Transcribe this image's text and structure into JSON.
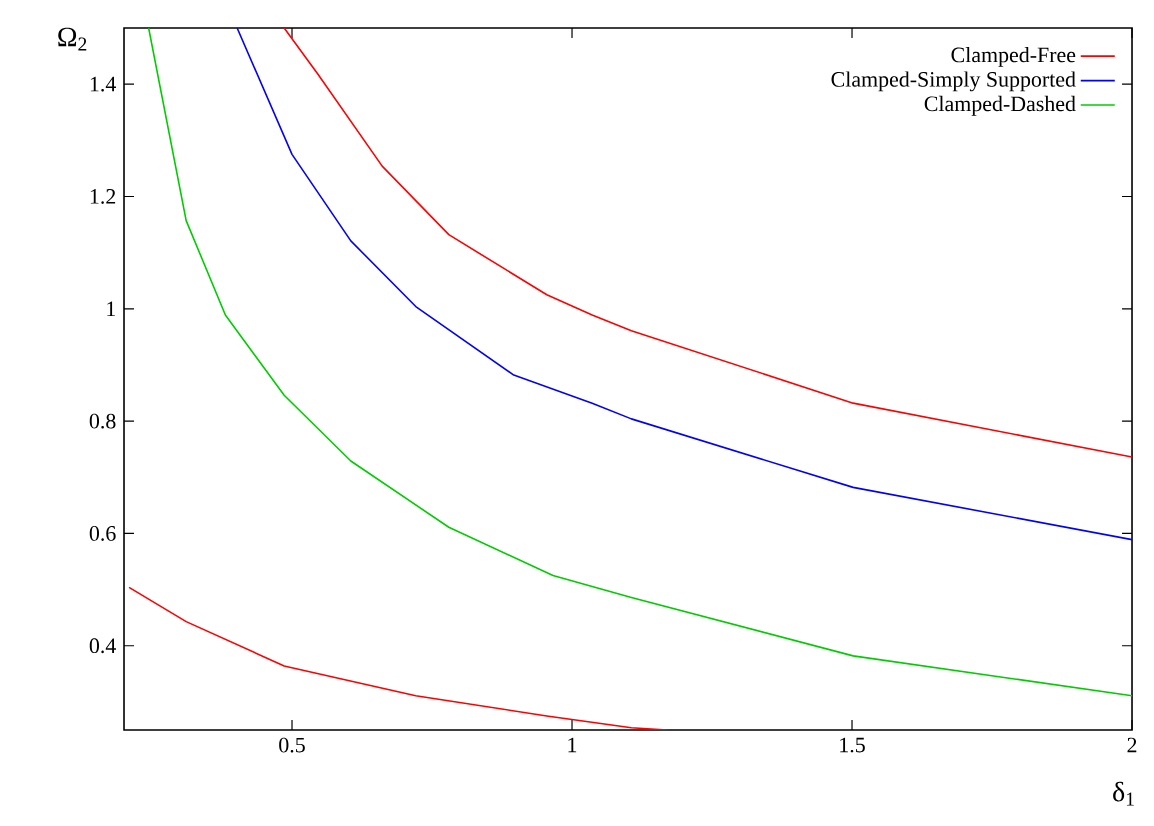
{
  "chart_data": {
    "type": "line",
    "xlabel": "δ$_{1}$",
    "ylabel": "Ω$_{2}$",
    "xlim": [
      0.2,
      2
    ],
    "ylim": [
      0.25,
      1.5
    ],
    "xticks": [
      0.5,
      1,
      1.5,
      2
    ],
    "yticks": [
      0.4,
      0.6,
      0.8,
      1,
      1.2,
      1.4
    ],
    "legend": "top right",
    "grid": false,
    "marker": "none",
    "line_style": "solid",
    "series": [
      {
        "name": "Clamped-Free",
        "color": "#ff0000",
        "x": [
          0.486,
          0.546,
          0.661,
          0.78,
          0.955,
          1.036,
          1.106,
          1.502,
          2.0
        ],
        "values": [
          1.5,
          1.418,
          1.254,
          1.132,
          1.025,
          0.989,
          0.961,
          0.832,
          0.736
        ]
      },
      {
        "name": "Clamped-Simply Supported",
        "color": "#0000ff",
        "x": [
          0.402,
          0.5,
          0.605,
          0.721,
          0.896,
          1.036,
          1.106,
          1.502,
          2.0
        ],
        "values": [
          1.5,
          1.275,
          1.121,
          1.004,
          0.882,
          0.832,
          0.804,
          0.682,
          0.589
        ]
      },
      {
        "name": "Clamped-Dashed",
        "color": "#00cc00",
        "x": [
          0.244,
          0.311,
          0.381,
          0.486,
          0.605,
          0.78,
          0.966,
          1.106,
          1.502,
          2.0
        ],
        "values": [
          1.5,
          1.157,
          0.989,
          0.846,
          0.729,
          0.611,
          0.525,
          0.486,
          0.382,
          0.311
        ]
      },
      {
        "color": "#ff0000",
        "x": [
          0.209,
          0.311,
          0.486,
          0.721,
          0.955,
          1.106,
          1.17
        ],
        "values": [
          0.504,
          0.443,
          0.364,
          0.311,
          0.275,
          0.254,
          0.25
        ]
      }
    ]
  }
}
